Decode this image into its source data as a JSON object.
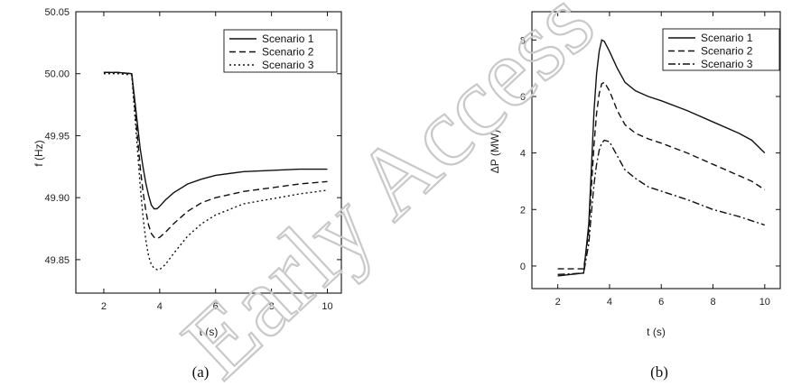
{
  "watermark": "Early Access",
  "chart_data": [
    {
      "type": "line",
      "caption": "(a)",
      "xlabel": "t (s)",
      "ylabel": "f (Hz)",
      "xlim": [
        1.0,
        10.5
      ],
      "ylim": [
        49.823,
        50.05
      ],
      "xticks": [
        2,
        4,
        6,
        8,
        10
      ],
      "yticks": [
        49.85,
        49.9,
        49.95,
        50.0,
        50.05
      ],
      "ytick_labels": [
        "49.85",
        "49.90",
        "49.95",
        "50.00",
        "50.05"
      ],
      "legend_position": "top-right",
      "series": [
        {
          "name": "Scenario 1",
          "style": "solid",
          "points": [
            [
              2.0,
              50.001
            ],
            [
              2.5,
              50.001
            ],
            [
              3.0,
              50.0
            ],
            [
              3.1,
              49.98
            ],
            [
              3.2,
              49.96
            ],
            [
              3.3,
              49.94
            ],
            [
              3.4,
              49.925
            ],
            [
              3.5,
              49.912
            ],
            [
              3.6,
              49.902
            ],
            [
              3.7,
              49.894
            ],
            [
              3.8,
              49.891
            ],
            [
              3.9,
              49.891
            ],
            [
              4.0,
              49.893
            ],
            [
              4.2,
              49.898
            ],
            [
              4.5,
              49.904
            ],
            [
              5.0,
              49.911
            ],
            [
              5.5,
              49.915
            ],
            [
              6.0,
              49.918
            ],
            [
              7.0,
              49.921
            ],
            [
              8.0,
              49.922
            ],
            [
              9.0,
              49.923
            ],
            [
              10.0,
              49.923
            ]
          ]
        },
        {
          "name": "Scenario 2",
          "style": "dashed",
          "points": [
            [
              2.0,
              50.001
            ],
            [
              2.5,
              50.001
            ],
            [
              3.0,
              50.0
            ],
            [
              3.1,
              49.975
            ],
            [
              3.2,
              49.95
            ],
            [
              3.3,
              49.925
            ],
            [
              3.4,
              49.905
            ],
            [
              3.5,
              49.89
            ],
            [
              3.6,
              49.878
            ],
            [
              3.7,
              49.871
            ],
            [
              3.8,
              49.868
            ],
            [
              3.9,
              49.867
            ],
            [
              4.0,
              49.868
            ],
            [
              4.2,
              49.872
            ],
            [
              4.5,
              49.879
            ],
            [
              5.0,
              49.889
            ],
            [
              5.5,
              49.896
            ],
            [
              6.0,
              49.9
            ],
            [
              7.0,
              49.905
            ],
            [
              8.0,
              49.908
            ],
            [
              9.0,
              49.911
            ],
            [
              10.0,
              49.913
            ]
          ]
        },
        {
          "name": "Scenario 3",
          "style": "dotted",
          "points": [
            [
              2.0,
              50.0
            ],
            [
              2.5,
              50.0
            ],
            [
              3.0,
              49.999
            ],
            [
              3.1,
              49.97
            ],
            [
              3.2,
              49.94
            ],
            [
              3.3,
              49.91
            ],
            [
              3.4,
              49.885
            ],
            [
              3.5,
              49.866
            ],
            [
              3.6,
              49.853
            ],
            [
              3.7,
              49.846
            ],
            [
              3.8,
              49.843
            ],
            [
              3.9,
              49.842
            ],
            [
              4.0,
              49.842
            ],
            [
              4.2,
              49.846
            ],
            [
              4.5,
              49.855
            ],
            [
              5.0,
              49.869
            ],
            [
              5.5,
              49.879
            ],
            [
              6.0,
              49.886
            ],
            [
              7.0,
              49.895
            ],
            [
              8.0,
              49.899
            ],
            [
              9.0,
              49.903
            ],
            [
              10.0,
              49.906
            ]
          ]
        }
      ]
    },
    {
      "type": "line",
      "caption": "(b)",
      "xlabel": "t (s)",
      "ylabel": "ΔP (MW)",
      "xlim": [
        1.0,
        10.6
      ],
      "ylim": [
        -0.8,
        9.0
      ],
      "xticks": [
        2,
        4,
        6,
        8,
        10
      ],
      "yticks": [
        0,
        2,
        4,
        6,
        8
      ],
      "ytick_labels": [
        "0",
        "2",
        "4",
        "6",
        "8"
      ],
      "legend_position": "top-right",
      "series": [
        {
          "name": "Scenario 1",
          "style": "solid",
          "points": [
            [
              2.0,
              -0.35
            ],
            [
              2.5,
              -0.3
            ],
            [
              3.0,
              -0.25
            ],
            [
              3.2,
              1.5
            ],
            [
              3.3,
              3.5
            ],
            [
              3.4,
              5.5
            ],
            [
              3.5,
              6.8
            ],
            [
              3.6,
              7.6
            ],
            [
              3.7,
              8.0
            ],
            [
              3.8,
              7.95
            ],
            [
              4.0,
              7.6
            ],
            [
              4.3,
              7.0
            ],
            [
              4.6,
              6.5
            ],
            [
              5.0,
              6.2
            ],
            [
              5.5,
              6.0
            ],
            [
              6.0,
              5.85
            ],
            [
              7.0,
              5.5
            ],
            [
              8.0,
              5.1
            ],
            [
              9.0,
              4.7
            ],
            [
              9.5,
              4.45
            ],
            [
              10.0,
              4.0
            ]
          ]
        },
        {
          "name": "Scenario 2",
          "style": "dashed",
          "points": [
            [
              2.0,
              -0.1
            ],
            [
              2.5,
              -0.1
            ],
            [
              3.0,
              -0.1
            ],
            [
              3.2,
              1.2
            ],
            [
              3.3,
              2.8
            ],
            [
              3.4,
              4.3
            ],
            [
              3.5,
              5.4
            ],
            [
              3.6,
              6.1
            ],
            [
              3.7,
              6.45
            ],
            [
              3.8,
              6.5
            ],
            [
              4.0,
              6.2
            ],
            [
              4.3,
              5.5
            ],
            [
              4.6,
              5.0
            ],
            [
              5.0,
              4.7
            ],
            [
              5.5,
              4.5
            ],
            [
              6.0,
              4.35
            ],
            [
              7.0,
              4.0
            ],
            [
              8.0,
              3.6
            ],
            [
              9.0,
              3.2
            ],
            [
              9.5,
              3.0
            ],
            [
              10.0,
              2.7
            ]
          ]
        },
        {
          "name": "Scenario 3",
          "style": "dashdot",
          "points": [
            [
              2.0,
              -0.3
            ],
            [
              2.5,
              -0.28
            ],
            [
              3.0,
              -0.25
            ],
            [
              3.2,
              0.8
            ],
            [
              3.3,
              1.9
            ],
            [
              3.4,
              2.9
            ],
            [
              3.5,
              3.6
            ],
            [
              3.6,
              4.1
            ],
            [
              3.7,
              4.35
            ],
            [
              3.8,
              4.45
            ],
            [
              4.0,
              4.4
            ],
            [
              4.3,
              3.9
            ],
            [
              4.6,
              3.4
            ],
            [
              5.0,
              3.1
            ],
            [
              5.5,
              2.8
            ],
            [
              6.0,
              2.65
            ],
            [
              7.0,
              2.35
            ],
            [
              8.0,
              2.0
            ],
            [
              9.0,
              1.75
            ],
            [
              9.5,
              1.6
            ],
            [
              10.0,
              1.45
            ]
          ]
        }
      ]
    }
  ]
}
